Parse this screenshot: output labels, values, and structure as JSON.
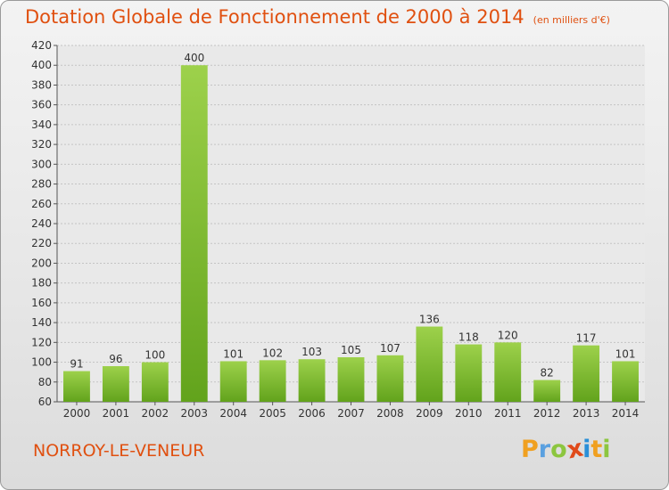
{
  "chart_data": {
    "type": "bar",
    "title": "Dotation Globale de Fonctionnement de 2000 à 2014",
    "unit": "(en milliers d'€)",
    "categories": [
      "2000",
      "2001",
      "2002",
      "2003",
      "2004",
      "2005",
      "2006",
      "2007",
      "2008",
      "2009",
      "2010",
      "2011",
      "2012",
      "2013",
      "2014"
    ],
    "values": [
      91,
      96,
      100,
      400,
      101,
      102,
      103,
      105,
      107,
      136,
      118,
      120,
      82,
      117,
      101
    ],
    "ylim": [
      60,
      420
    ],
    "yticks": [
      60,
      80,
      100,
      120,
      140,
      160,
      180,
      200,
      220,
      240,
      260,
      280,
      300,
      320,
      340,
      360,
      380,
      400,
      420
    ],
    "xlabel": "",
    "ylabel": "",
    "grid": true,
    "colors": {
      "bar_top": "#9dd14b",
      "bar_bottom": "#62a31c",
      "title": "#e05010"
    }
  },
  "commune": "NORROY-LE-VENEUR",
  "logo": {
    "letters": [
      "P",
      "r",
      "o",
      "x",
      "i",
      "t",
      "i"
    ],
    "colors": [
      "#f0a020",
      "#5aa0e0",
      "#8cc63f",
      "#e04a1a",
      "#2a8fd8",
      "#f0a020",
      "#8cc63f"
    ]
  }
}
